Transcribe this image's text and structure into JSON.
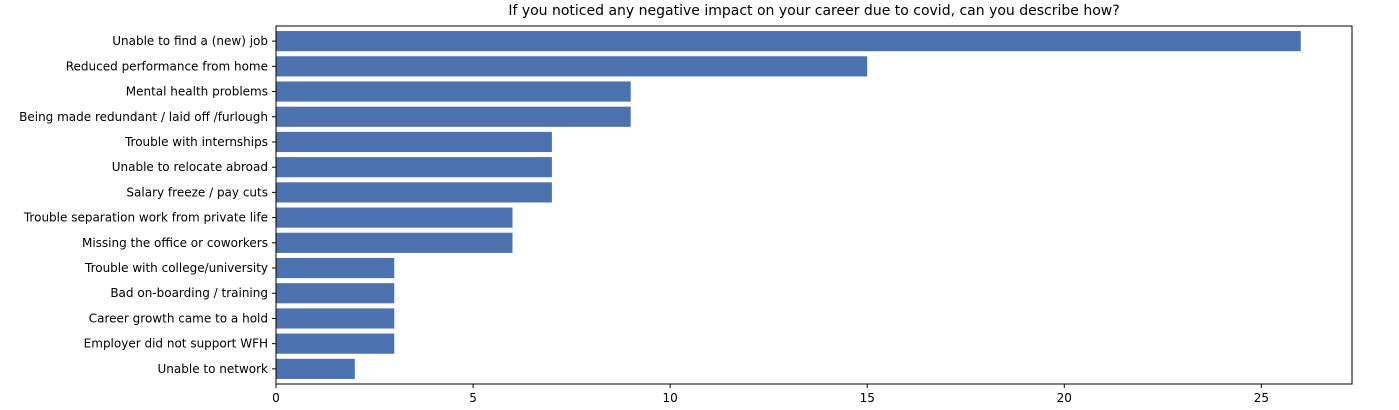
{
  "chart_data": {
    "type": "bar",
    "orientation": "horizontal",
    "title": "If you noticed any negative impact on your career due to covid, can you describe how?",
    "xlabel": "",
    "ylabel": "",
    "xlim": [
      0,
      27.3
    ],
    "xticks": [
      0,
      5,
      10,
      15,
      20,
      25
    ],
    "grid": false,
    "bar_color": "#4c72b0",
    "categories": [
      "Unable to find a (new) job",
      "Reduced performance from home",
      "Mental health problems",
      "Being made redundant / laid off /furlough",
      "Trouble with internships",
      "Unable to relocate abroad",
      "Salary freeze / pay cuts",
      "Trouble separation work from private life",
      "Missing the office or coworkers",
      "Trouble with college/university",
      "Bad on-boarding / training",
      "Career growth came to a hold",
      "Employer did not support WFH",
      "Unable to network"
    ],
    "values": [
      26,
      15,
      9,
      9,
      7,
      7,
      7,
      6,
      6,
      3,
      3,
      3,
      3,
      2
    ]
  }
}
